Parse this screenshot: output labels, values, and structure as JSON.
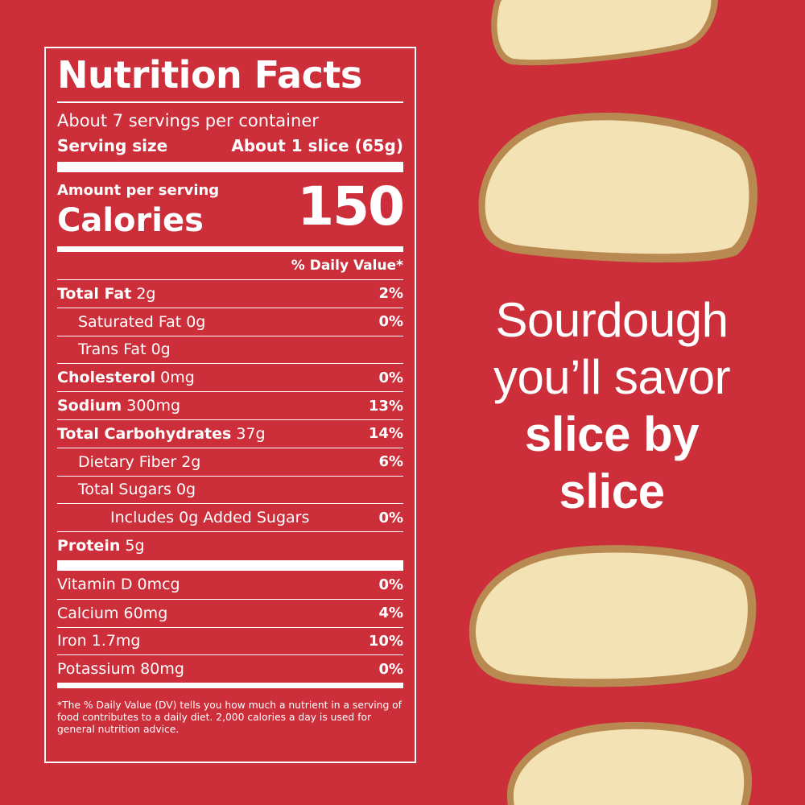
{
  "label": {
    "title": "Nutrition Facts",
    "servings_per_container": "About 7 servings per container",
    "serving_size_label": "Serving size",
    "serving_size_value": "About 1 slice (65g)",
    "amount_per_serving": "Amount per serving",
    "calories_label": "Calories",
    "calories_value": "150",
    "daily_value_header": "% Daily Value*",
    "nutrients": [
      {
        "bold_name": "Total Fat",
        "amount": " 2g",
        "dv": "2%"
      },
      {
        "bold_name": "",
        "amount": "Saturated Fat 0g",
        "dv": "0%"
      },
      {
        "bold_name": "",
        "amount": "Trans Fat 0g",
        "dv": ""
      },
      {
        "bold_name": "Cholesterol",
        "amount": " 0mg",
        "dv": "0%"
      },
      {
        "bold_name": "Sodium",
        "amount": " 300mg",
        "dv": "13%"
      },
      {
        "bold_name": "Total Carbohydrates",
        "amount": " 37g",
        "dv": "14%"
      },
      {
        "bold_name": "",
        "amount": "Dietary Fiber 2g",
        "dv": "6%"
      },
      {
        "bold_name": "",
        "amount": "Total Sugars 0g",
        "dv": ""
      },
      {
        "bold_name": "",
        "amount": "Includes 0g Added Sugars",
        "dv": "0%"
      },
      {
        "bold_name": "Protein",
        "amount": " 5g",
        "dv": ""
      }
    ],
    "vitamins": [
      {
        "name": "Vitamin D 0mcg",
        "dv": "0%"
      },
      {
        "name": "Calcium 60mg",
        "dv": "4%"
      },
      {
        "name": "Iron 1.7mg",
        "dv": "10%"
      },
      {
        "name": "Potassium 80mg",
        "dv": "0%"
      }
    ],
    "footnote": "*The % Daily Value (DV) tells you how much a nutrient in a serving of food contributes to a daily diet. 2,000 calories a day is used for general nutrition advice."
  },
  "slogan": {
    "line1": "Sourdough",
    "line2": "you’ll savor",
    "line3": "slice by",
    "line4": "slice"
  },
  "colors": {
    "background": "#cc2e3a",
    "text": "#ffffff",
    "bread_crumb": "#f3e3b4",
    "bread_crust": "#b88a52"
  },
  "icons": [
    "bread-slice-icon"
  ]
}
